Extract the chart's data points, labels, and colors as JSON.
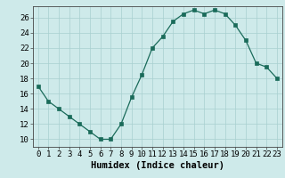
{
  "x": [
    0,
    1,
    2,
    3,
    4,
    5,
    6,
    7,
    8,
    9,
    10,
    11,
    12,
    13,
    14,
    15,
    16,
    17,
    18,
    19,
    20,
    21,
    22,
    23
  ],
  "y": [
    17,
    15,
    14,
    13,
    12,
    11,
    10,
    10,
    12,
    15.5,
    18.5,
    22,
    23.5,
    25.5,
    26.5,
    27,
    26.5,
    27,
    26.5,
    25,
    23,
    20,
    19.5,
    18
  ],
  "line_color": "#1a6b5a",
  "marker_color": "#1a6b5a",
  "bg_color": "#ceeaea",
  "grid_color": "#a8d0d0",
  "xlabel": "Humidex (Indice chaleur)",
  "xlim": [
    -0.5,
    23.5
  ],
  "ylim": [
    9,
    27.5
  ],
  "yticks": [
    10,
    12,
    14,
    16,
    18,
    20,
    22,
    24,
    26
  ],
  "xticks": [
    0,
    1,
    2,
    3,
    4,
    5,
    6,
    7,
    8,
    9,
    10,
    11,
    12,
    13,
    14,
    15,
    16,
    17,
    18,
    19,
    20,
    21,
    22,
    23
  ],
  "xtick_labels": [
    "0",
    "1",
    "2",
    "3",
    "4",
    "5",
    "6",
    "7",
    "8",
    "9",
    "10",
    "11",
    "12",
    "13",
    "14",
    "15",
    "16",
    "17",
    "18",
    "19",
    "20",
    "21",
    "22",
    "23"
  ],
  "xlabel_fontsize": 7.5,
  "tick_fontsize": 6.5
}
